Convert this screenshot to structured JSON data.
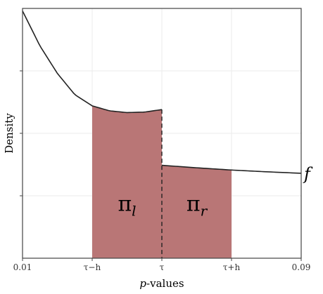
{
  "chart_data": {
    "type": "line",
    "ylabel": "Density",
    "xlabel": {
      "italic": "p",
      "rest": "-values"
    },
    "x_ticks": [
      {
        "value": 0.01,
        "label": "0.01"
      },
      {
        "value": 0.03,
        "label": "τ−h"
      },
      {
        "value": 0.05,
        "label": "τ"
      },
      {
        "value": 0.07,
        "label": "τ+h"
      },
      {
        "value": 0.09,
        "label": "0.09"
      }
    ],
    "y_ticks": [
      0.25,
      0.5,
      0.75
    ],
    "xlim": [
      0.01,
      0.09
    ],
    "ylim": [
      0,
      1
    ],
    "grid": true,
    "curve_label": "f",
    "discontinuity_at": 0.05,
    "left_curve": {
      "x": [
        0.01,
        0.015,
        0.02,
        0.025,
        0.03,
        0.035,
        0.04,
        0.045,
        0.05
      ],
      "y": [
        0.99,
        0.85,
        0.74,
        0.655,
        0.61,
        0.59,
        0.583,
        0.585,
        0.595
      ]
    },
    "right_curve": {
      "x": [
        0.05,
        0.06,
        0.07,
        0.08,
        0.09
      ],
      "y": [
        0.372,
        0.362,
        0.353,
        0.346,
        0.34
      ]
    },
    "shaded_regions": [
      {
        "from": 0.03,
        "to": 0.05,
        "label": "π",
        "subscript": "l",
        "color": "#b97676"
      },
      {
        "from": 0.05,
        "to": 0.07,
        "label": "π",
        "subscript": "r",
        "color": "#b97676"
      }
    ],
    "colors": {
      "curve": "#222222",
      "grid": "#ebebeb",
      "frame": "#444444",
      "fill": "#b97676"
    }
  }
}
